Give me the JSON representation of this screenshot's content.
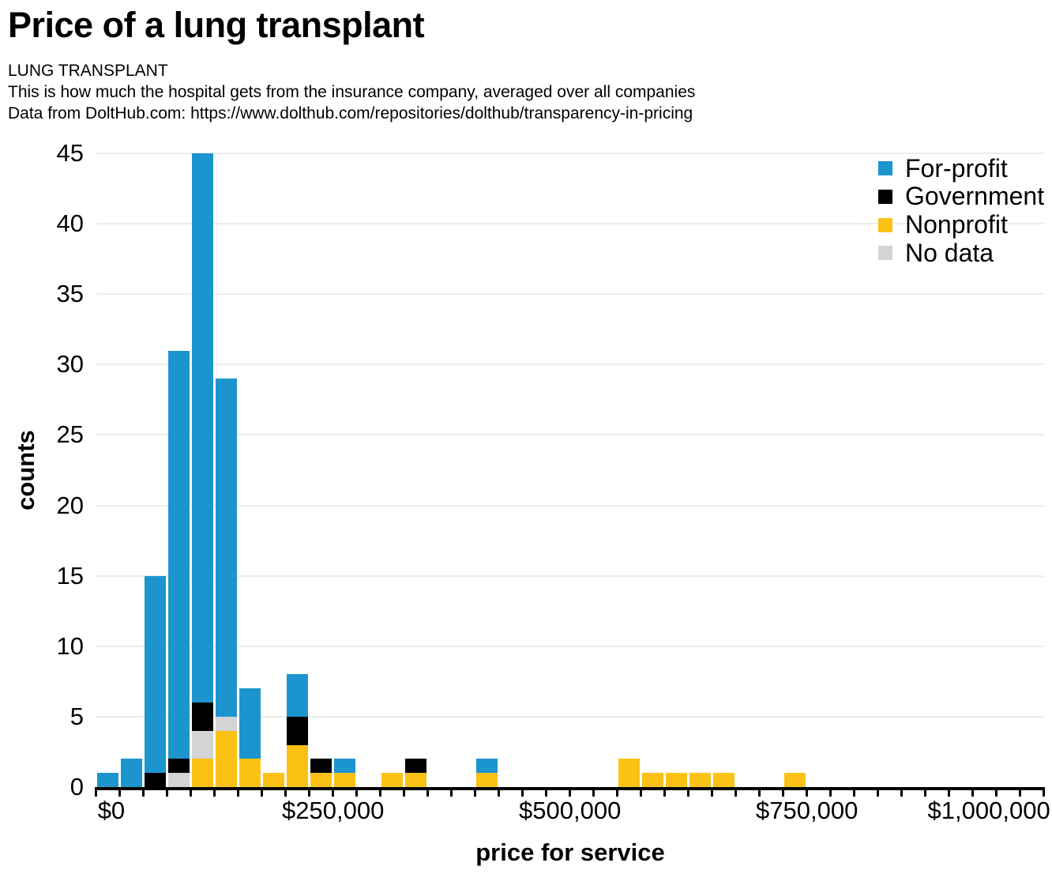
{
  "header": {
    "title": "Price of a lung transplant",
    "subtitle_lines": [
      "LUNG TRANSPLANT",
      "This is how much the hospital gets from the insurance company, averaged over all companies",
      "Data from DoltHub.com: https://www.dolthub.com/repositories/dolthub/transparency-in-pricing"
    ]
  },
  "chart_data": {
    "type": "bar",
    "stacked": true,
    "xlabel": "price for service",
    "ylabel": "counts",
    "grid": "horizontal",
    "ylim": [
      0,
      45
    ],
    "y_ticks": [
      0,
      5,
      10,
      15,
      20,
      25,
      30,
      35,
      40,
      45
    ],
    "x_range_dollars": [
      0,
      1000000
    ],
    "bin_width_dollars": 25000,
    "x_tick_step_dollars": 25000,
    "x_tick_labels": [
      {
        "dollars": 0,
        "label": "$0",
        "align": "left"
      },
      {
        "dollars": 250000,
        "label": "$250,000",
        "align": "center"
      },
      {
        "dollars": 500000,
        "label": "$500,000",
        "align": "center"
      },
      {
        "dollars": 750000,
        "label": "$750,000",
        "align": "center"
      },
      {
        "dollars": 1000000,
        "label": "$1,000,000",
        "align": "right"
      }
    ],
    "stack_order_note": "series listed bottom-to-top; one value per $25,000 bin starting at $0",
    "series": [
      {
        "name": "Nonprofit",
        "color": "#FCC115",
        "values": [
          0,
          0,
          0,
          0,
          2,
          4,
          2,
          1,
          3,
          1,
          1,
          0,
          1,
          1,
          0,
          0,
          1,
          0,
          0,
          0,
          0,
          0,
          2,
          1,
          1,
          1,
          1,
          0,
          0,
          1,
          0,
          0,
          0,
          0,
          0,
          0,
          0,
          0,
          0,
          0
        ]
      },
      {
        "name": "No data",
        "color": "#D4D4D4",
        "values": [
          0,
          0,
          0,
          1,
          2,
          1,
          0,
          0,
          0,
          0,
          0,
          0,
          0,
          0,
          0,
          0,
          0,
          0,
          0,
          0,
          0,
          0,
          0,
          0,
          0,
          0,
          0,
          0,
          0,
          0,
          0,
          0,
          0,
          0,
          0,
          0,
          0,
          0,
          0,
          0
        ]
      },
      {
        "name": "Government",
        "color": "#000000",
        "values": [
          0,
          0,
          1,
          1,
          2,
          0,
          0,
          0,
          2,
          1,
          0,
          0,
          0,
          1,
          0,
          0,
          0,
          0,
          0,
          0,
          0,
          0,
          0,
          0,
          0,
          0,
          0,
          0,
          0,
          0,
          0,
          0,
          0,
          0,
          0,
          0,
          0,
          0,
          0,
          0
        ]
      },
      {
        "name": "For-profit",
        "color": "#1C95CF",
        "values": [
          1,
          2,
          14,
          29,
          39,
          24,
          5,
          0,
          3,
          0,
          1,
          0,
          0,
          0,
          0,
          0,
          1,
          0,
          0,
          0,
          0,
          0,
          0,
          0,
          0,
          0,
          0,
          0,
          0,
          0,
          0,
          0,
          0,
          0,
          0,
          0,
          0,
          0,
          0,
          0
        ]
      }
    ],
    "legend": {
      "position": "top-right",
      "entries": [
        {
          "label": "For-profit",
          "color": "#1C95CF"
        },
        {
          "label": "Government",
          "color": "#000000"
        },
        {
          "label": "Nonprofit",
          "color": "#FCC115"
        },
        {
          "label": "No data",
          "color": "#D4D4D4"
        }
      ]
    }
  }
}
